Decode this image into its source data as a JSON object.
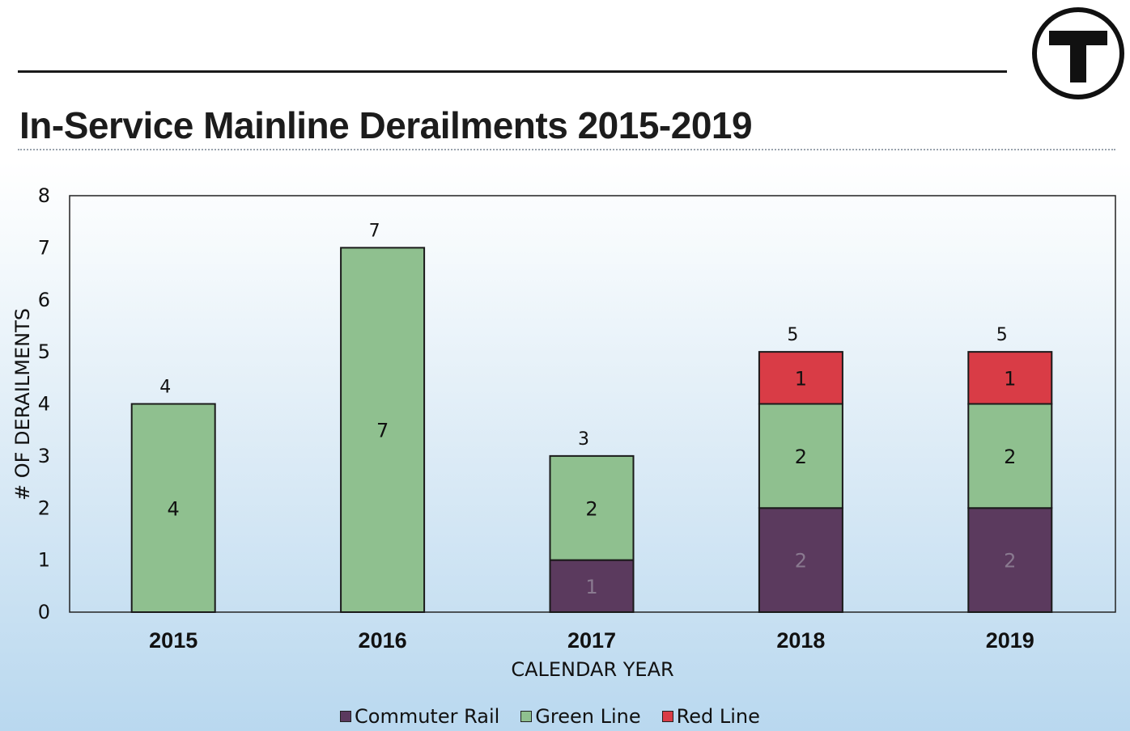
{
  "header": {
    "title": "In-Service Mainline Derailments 2015-2019",
    "logo_letter": "T"
  },
  "colors": {
    "commuter_rail": "#5b3a5e",
    "green_line": "#8fc08f",
    "red_line": "#d93c46",
    "axis": "#111111",
    "logo": "#111111"
  },
  "chart_data": {
    "type": "bar",
    "stacked": true,
    "title": "In-Service Mainline Derailments 2015-2019",
    "xlabel": "CALENDAR YEAR",
    "ylabel": "# OF DERAILMENTS",
    "ylim": [
      0,
      8
    ],
    "yticks": [
      "0",
      "1",
      "2",
      "3",
      "4",
      "5",
      "6",
      "7",
      "8"
    ],
    "categories": [
      "2015",
      "2016",
      "2017",
      "2018",
      "2019"
    ],
    "series": [
      {
        "name": "Commuter Rail",
        "color": "#5b3a5e",
        "values": [
          0,
          0,
          1,
          2,
          2
        ]
      },
      {
        "name": "Green Line",
        "color": "#8fc08f",
        "values": [
          4,
          7,
          2,
          2,
          2
        ]
      },
      {
        "name": "Red Line",
        "color": "#d93c46",
        "values": [
          0,
          0,
          0,
          1,
          1
        ]
      }
    ],
    "totals": [
      4,
      7,
      3,
      5,
      5
    ],
    "grid": false,
    "legend": "bottom"
  }
}
